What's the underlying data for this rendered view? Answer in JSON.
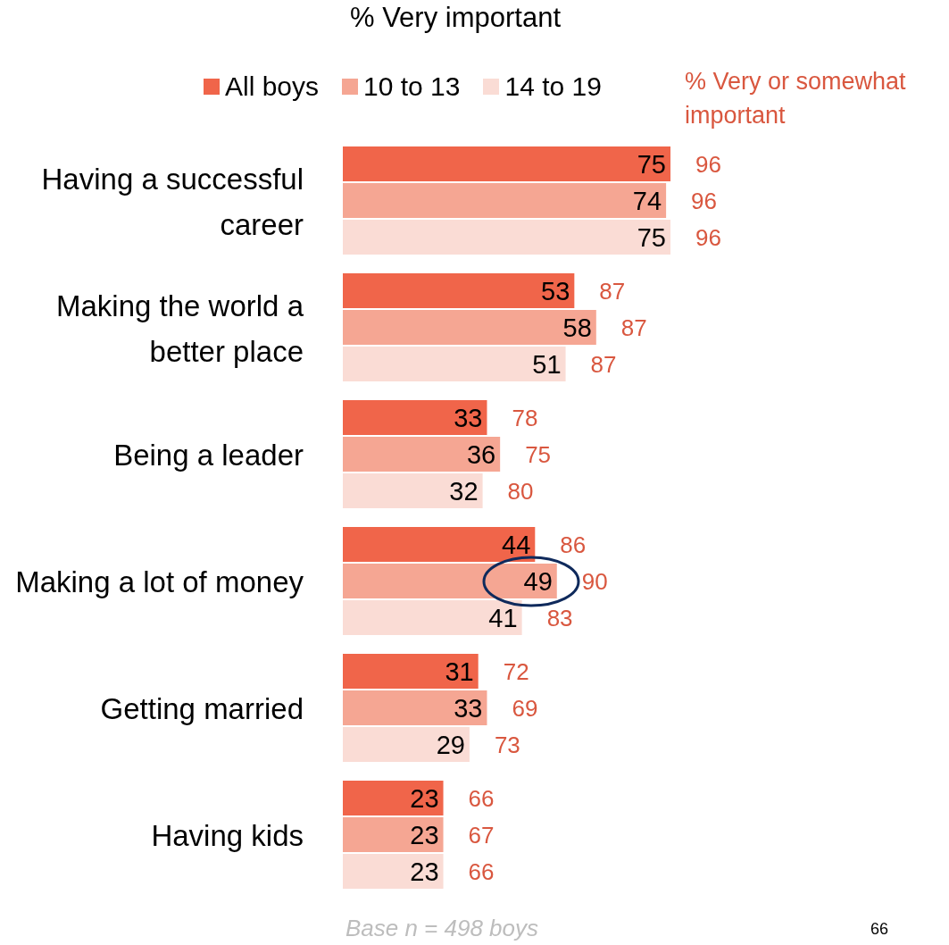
{
  "chart_data": {
    "type": "bar",
    "orientation": "horizontal",
    "title": "% Very important",
    "categories": [
      "Having a successful career",
      "Making the world a better place",
      "Being a leader",
      "Making a lot of money",
      "Getting married",
      "Having kids"
    ],
    "series": [
      {
        "name": "All boys",
        "color": "#f0654a",
        "values": [
          75,
          53,
          33,
          44,
          31,
          23
        ]
      },
      {
        "name": "10 to 13",
        "color": "#f5a693",
        "values": [
          74,
          58,
          36,
          49,
          33,
          23
        ]
      },
      {
        "name": "14 to 19",
        "color": "#fadcd5",
        "values": [
          75,
          51,
          32,
          41,
          29,
          23
        ]
      }
    ],
    "data_labels": true,
    "legend": "top",
    "tick_labels": "y",
    "annotations": [
      "% Very or somewhat important",
      "96",
      "96",
      "96",
      "87",
      "87",
      "87",
      "78",
      "75",
      "80",
      "86",
      "90",
      "83",
      "72",
      "69",
      "73",
      "66",
      "67",
      "66",
      "Base n = 498 boys",
      "66"
    ]
  }
}
